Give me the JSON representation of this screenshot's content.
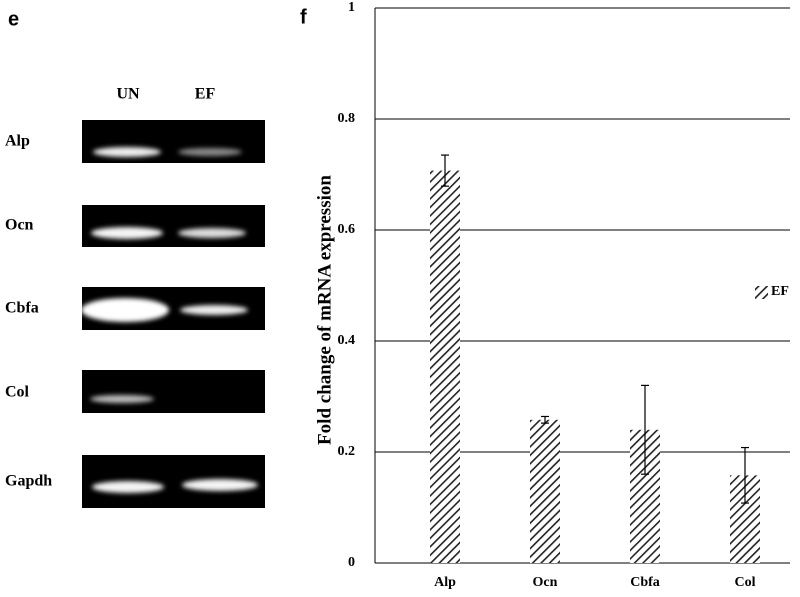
{
  "panels": {
    "left": "e",
    "right": "f"
  },
  "gel": {
    "columns": [
      "UN",
      "EF"
    ],
    "rows": [
      "Alp",
      "Ocn",
      "Cbfa",
      "Col",
      "Gapdh"
    ]
  },
  "chart_data": {
    "type": "bar",
    "y_label": "Fold change of mRNA expression",
    "categories": [
      "Alp",
      "Ocn",
      "Cbfa",
      "Col"
    ],
    "series": [
      {
        "name": "EF",
        "color": "#222222",
        "values": [
          0.707,
          0.258,
          0.24,
          0.158
        ],
        "errors": [
          0.028,
          0.006,
          0.08,
          0.05
        ]
      }
    ],
    "ylim": [
      0,
      1
    ],
    "yticks": [
      0,
      0.2,
      0.4,
      0.6,
      0.8,
      1
    ],
    "grid": true,
    "hatch": true,
    "legend": "right"
  }
}
